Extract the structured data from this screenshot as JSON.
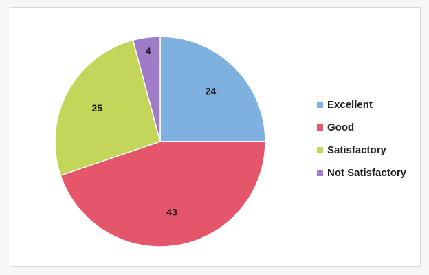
{
  "chart_data": {
    "type": "pie",
    "title": "",
    "categories": [
      "Excellent",
      "Good",
      "Satisfactory",
      "Not Satisfactory"
    ],
    "values": [
      24,
      43,
      25,
      4
    ],
    "colors": [
      "#7eb0e0",
      "#e6566a",
      "#c4d65a",
      "#a07cc8"
    ],
    "data_labels": [
      "24",
      "43",
      "25",
      "4"
    ],
    "legend_position": "right"
  }
}
